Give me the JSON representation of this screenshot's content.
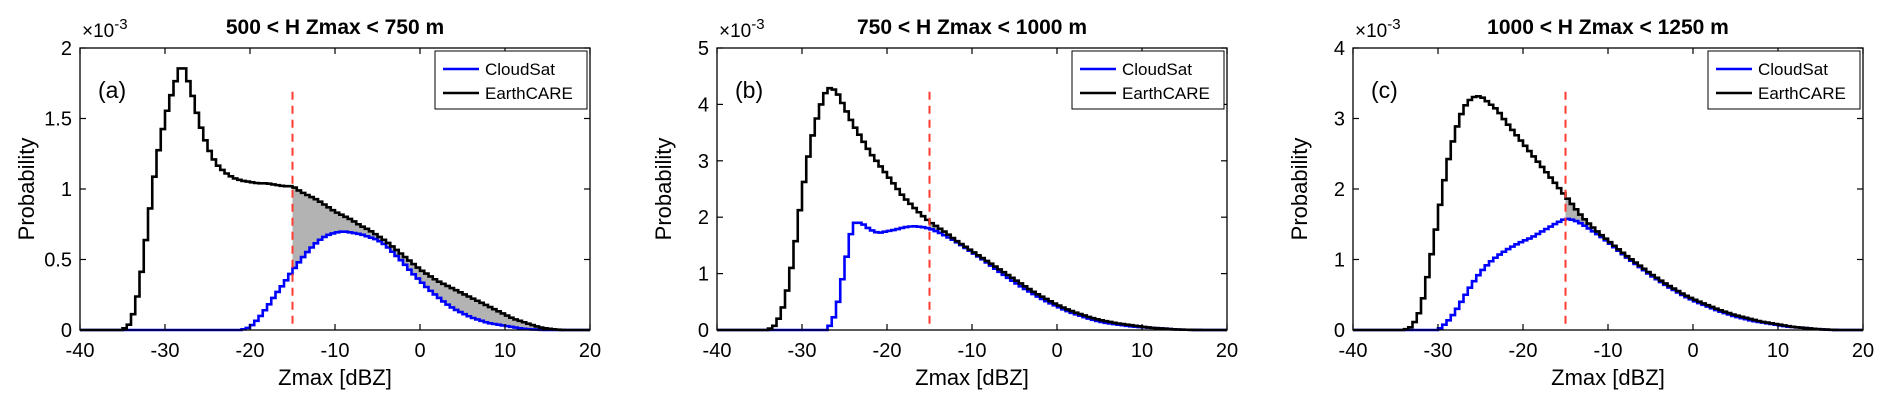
{
  "chart_data": [
    {
      "type": "line",
      "panel_label": "(a)",
      "title": "500 < H Zmax < 750 m",
      "xlabel": "Zmax [dBZ]",
      "ylabel": "Probability",
      "y_scale_label": "×10",
      "y_scale_exponent": "-3",
      "xlim": [
        -40,
        20
      ],
      "ylim": [
        0,
        2
      ],
      "xticks": [
        -40,
        -30,
        -20,
        -10,
        0,
        10,
        20
      ],
      "yticks": [
        0,
        0.5,
        1,
        1.5,
        2
      ],
      "ytick_labels": [
        "0",
        "0.5",
        "1",
        "1.5",
        "2"
      ],
      "threshold_x": -15,
      "legend_position": "top-right",
      "series": [
        {
          "name": "CloudSat",
          "color": "#0000ff",
          "x": [
            -35,
            -21,
            -20,
            -19,
            -18,
            -17,
            -16,
            -15,
            -14,
            -13,
            -12,
            -11,
            -10,
            -9,
            -8,
            -7,
            -6,
            -5,
            -4,
            -3,
            -2,
            -1,
            0,
            1,
            2,
            3,
            4,
            5,
            6,
            7,
            8,
            9,
            10,
            11,
            12,
            13,
            14,
            15
          ],
          "values": [
            0,
            0,
            0.02,
            0.08,
            0.16,
            0.25,
            0.33,
            0.42,
            0.5,
            0.57,
            0.63,
            0.67,
            0.69,
            0.7,
            0.69,
            0.68,
            0.66,
            0.64,
            0.6,
            0.54,
            0.48,
            0.41,
            0.35,
            0.29,
            0.24,
            0.19,
            0.15,
            0.12,
            0.09,
            0.07,
            0.05,
            0.04,
            0.03,
            0.02,
            0.01,
            0.005,
            0.002,
            0
          ]
        },
        {
          "name": "EarthCARE",
          "color": "#000000",
          "x": [
            -35,
            -34,
            -33,
            -32,
            -31,
            -30,
            -29,
            -28,
            -27,
            -26,
            -25,
            -24,
            -23,
            -22,
            -21,
            -20,
            -19,
            -18,
            -17,
            -16,
            -15,
            -14,
            -13,
            -12,
            -11,
            -10,
            -9,
            -8,
            -7,
            -6,
            -5,
            -4,
            -3,
            -2,
            -1,
            0,
            1,
            2,
            3,
            4,
            5,
            6,
            7,
            8,
            9,
            10,
            11,
            12,
            13,
            14,
            15,
            16,
            17
          ],
          "values": [
            0,
            0.05,
            0.3,
            0.75,
            1.2,
            1.5,
            1.72,
            1.9,
            1.72,
            1.48,
            1.3,
            1.18,
            1.12,
            1.08,
            1.06,
            1.05,
            1.04,
            1.04,
            1.03,
            1.02,
            1.02,
            0.98,
            0.95,
            0.92,
            0.88,
            0.84,
            0.81,
            0.78,
            0.74,
            0.71,
            0.67,
            0.63,
            0.58,
            0.53,
            0.48,
            0.43,
            0.39,
            0.35,
            0.32,
            0.29,
            0.26,
            0.23,
            0.2,
            0.17,
            0.14,
            0.11,
            0.08,
            0.06,
            0.04,
            0.02,
            0.01,
            0.003,
            0
          ]
        }
      ]
    },
    {
      "type": "line",
      "panel_label": "(b)",
      "title": "750 < H Zmax < 1000 m",
      "xlabel": "Zmax [dBZ]",
      "ylabel": "Probability",
      "y_scale_label": "×10",
      "y_scale_exponent": "-3",
      "xlim": [
        -40,
        20
      ],
      "ylim": [
        0,
        5
      ],
      "xticks": [
        -40,
        -30,
        -20,
        -10,
        0,
        10,
        20
      ],
      "yticks": [
        0,
        1,
        2,
        3,
        4,
        5
      ],
      "ytick_labels": [
        "0",
        "1",
        "2",
        "3",
        "4",
        "5"
      ],
      "threshold_x": -15,
      "legend_position": "top-right",
      "series": [
        {
          "name": "CloudSat",
          "color": "#0000ff",
          "x": [
            -34,
            -27,
            -26,
            -25,
            -24,
            -23,
            -22,
            -21,
            -20,
            -19,
            -18,
            -17,
            -16,
            -15,
            -14,
            -13,
            -12,
            -11,
            -10,
            -9,
            -8,
            -7,
            -6,
            -5,
            -4,
            -3,
            -2,
            -1,
            0,
            1,
            2,
            3,
            4,
            5,
            6,
            7,
            8,
            9,
            10,
            11,
            12,
            13,
            14,
            15,
            16,
            17
          ],
          "values": [
            0,
            0,
            0.3,
            1.1,
            1.9,
            1.9,
            1.78,
            1.72,
            1.75,
            1.78,
            1.82,
            1.84,
            1.83,
            1.8,
            1.74,
            1.66,
            1.58,
            1.48,
            1.38,
            1.28,
            1.17,
            1.06,
            0.95,
            0.85,
            0.75,
            0.66,
            0.57,
            0.49,
            0.42,
            0.35,
            0.29,
            0.24,
            0.19,
            0.15,
            0.12,
            0.1,
            0.08,
            0.06,
            0.05,
            0.04,
            0.03,
            0.02,
            0.01,
            0.005,
            0.002,
            0
          ]
        },
        {
          "name": "EarthCARE",
          "color": "#000000",
          "x": [
            -34,
            -33,
            -32,
            -31,
            -30,
            -29,
            -28,
            -27,
            -26,
            -25,
            -24,
            -23,
            -22,
            -21,
            -20,
            -19,
            -18,
            -17,
            -16,
            -15,
            -14,
            -13,
            -12,
            -11,
            -10,
            -9,
            -8,
            -7,
            -6,
            -5,
            -4,
            -3,
            -2,
            -1,
            0,
            1,
            2,
            3,
            4,
            5,
            6,
            7,
            8,
            9,
            10,
            11,
            12,
            13,
            14,
            15,
            16,
            17
          ],
          "values": [
            0,
            0.1,
            0.5,
            1.3,
            2.4,
            3.3,
            3.9,
            4.3,
            4.25,
            3.95,
            3.65,
            3.4,
            3.15,
            2.95,
            2.75,
            2.55,
            2.35,
            2.2,
            2.05,
            1.92,
            1.82,
            1.72,
            1.6,
            1.5,
            1.4,
            1.3,
            1.2,
            1.1,
            1.0,
            0.9,
            0.8,
            0.7,
            0.61,
            0.53,
            0.45,
            0.38,
            0.32,
            0.27,
            0.22,
            0.18,
            0.15,
            0.12,
            0.1,
            0.08,
            0.06,
            0.04,
            0.03,
            0.02,
            0.01,
            0.005,
            0.002,
            0
          ]
        }
      ]
    },
    {
      "type": "line",
      "panel_label": "(c)",
      "title": "1000 < H Zmax < 1250 m",
      "xlabel": "Zmax [dBZ]",
      "ylabel": "Probability",
      "y_scale_label": "×10",
      "y_scale_exponent": "-3",
      "xlim": [
        -40,
        20
      ],
      "ylim": [
        0,
        4
      ],
      "xticks": [
        -40,
        -30,
        -20,
        -10,
        0,
        10,
        20
      ],
      "yticks": [
        0,
        1,
        2,
        3,
        4
      ],
      "ytick_labels": [
        "0",
        "1",
        "2",
        "3",
        "4"
      ],
      "threshold_x": -15,
      "legend_position": "top-right",
      "series": [
        {
          "name": "CloudSat",
          "color": "#0000ff",
          "x": [
            -34,
            -30,
            -29,
            -28,
            -27,
            -26,
            -25,
            -24,
            -23,
            -22,
            -21,
            -20,
            -19,
            -18,
            -17,
            -16,
            -15,
            -14,
            -13,
            -12,
            -11,
            -10,
            -9,
            -8,
            -7,
            -6,
            -5,
            -4,
            -3,
            -2,
            -1,
            0,
            1,
            2,
            3,
            4,
            5,
            6,
            7,
            8,
            9,
            10,
            11,
            12,
            13,
            14,
            15,
            16,
            17
          ],
          "values": [
            0,
            0,
            0.1,
            0.25,
            0.45,
            0.65,
            0.82,
            0.95,
            1.05,
            1.13,
            1.2,
            1.26,
            1.31,
            1.38,
            1.45,
            1.52,
            1.58,
            1.56,
            1.5,
            1.42,
            1.34,
            1.25,
            1.15,
            1.05,
            0.96,
            0.87,
            0.78,
            0.7,
            0.62,
            0.55,
            0.48,
            0.42,
            0.37,
            0.32,
            0.27,
            0.23,
            0.19,
            0.16,
            0.13,
            0.11,
            0.09,
            0.07,
            0.05,
            0.04,
            0.03,
            0.02,
            0.01,
            0.003,
            0
          ]
        },
        {
          "name": "EarthCARE",
          "color": "#000000",
          "x": [
            -34,
            -33,
            -32,
            -31,
            -30,
            -29,
            -28,
            -27,
            -26,
            -25,
            -24,
            -23,
            -22,
            -21,
            -20,
            -19,
            -18,
            -17,
            -16,
            -15,
            -14,
            -13,
            -12,
            -11,
            -10,
            -9,
            -8,
            -7,
            -6,
            -5,
            -4,
            -3,
            -2,
            -1,
            0,
            1,
            2,
            3,
            4,
            5,
            6,
            7,
            8,
            9,
            10,
            11,
            12,
            13,
            14,
            15,
            16,
            17
          ],
          "values": [
            0,
            0.05,
            0.3,
            0.9,
            1.6,
            2.3,
            2.8,
            3.15,
            3.3,
            3.32,
            3.22,
            3.12,
            2.95,
            2.8,
            2.65,
            2.5,
            2.35,
            2.2,
            2.05,
            1.9,
            1.75,
            1.6,
            1.48,
            1.37,
            1.27,
            1.17,
            1.07,
            0.98,
            0.89,
            0.8,
            0.72,
            0.64,
            0.57,
            0.5,
            0.44,
            0.39,
            0.34,
            0.29,
            0.25,
            0.21,
            0.18,
            0.15,
            0.12,
            0.1,
            0.08,
            0.06,
            0.04,
            0.03,
            0.02,
            0.01,
            0.005,
            0
          ]
        }
      ]
    }
  ]
}
